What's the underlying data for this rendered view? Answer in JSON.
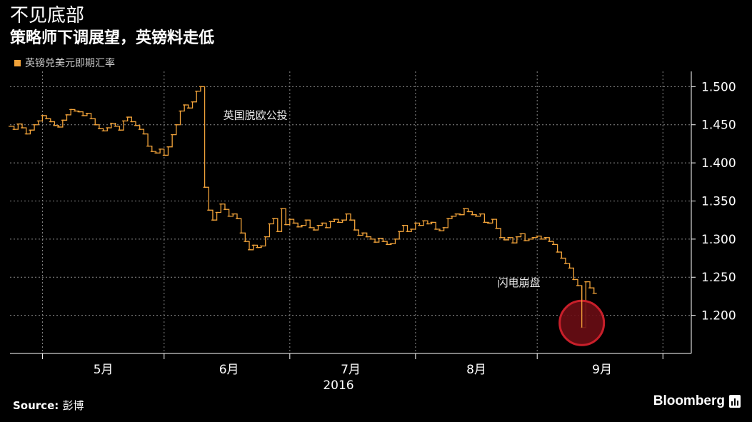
{
  "header": {
    "title": "不见底部",
    "subtitle": "策略师下调展望，英镑料走低",
    "legend": "英镑兑美元即期汇率"
  },
  "footer": {
    "source_label": "Source:",
    "source_value": "彭博",
    "brand": "Bloomberg"
  },
  "colors": {
    "line": "#f2a33a",
    "grid": "#8a8a8a",
    "axis": "#ffffff",
    "highlight": "#c81f2a",
    "highlight_fill": "#6a0d14"
  },
  "chart_data": {
    "type": "line",
    "title": "",
    "ylim": [
      1.15,
      1.52
    ],
    "yticks": [
      1.2,
      1.25,
      1.3,
      1.35,
      1.4,
      1.45,
      1.5
    ],
    "ytick_labels": [
      "1.200",
      "1.250",
      "1.300",
      "1.350",
      "1.400",
      "1.450",
      "1.500"
    ],
    "x_year_label": "2016",
    "x_range_days": [
      0,
      168
    ],
    "month_labels": [
      {
        "label": "5月",
        "day": 23
      },
      {
        "label": "6月",
        "day": 54
      },
      {
        "label": "7月",
        "day": 84
      },
      {
        "label": "8月",
        "day": 115
      },
      {
        "label": "9月",
        "day": 146
      }
    ],
    "grid": true,
    "series": [
      {
        "name": "英镑兑美元即期汇率",
        "points": [
          [
            0,
            1.448
          ],
          [
            1,
            1.444
          ],
          [
            2,
            1.451
          ],
          [
            3,
            1.446
          ],
          [
            4,
            1.438
          ],
          [
            5,
            1.443
          ],
          [
            6,
            1.45
          ],
          [
            7,
            1.455
          ],
          [
            8,
            1.462
          ],
          [
            9,
            1.458
          ],
          [
            10,
            1.454
          ],
          [
            11,
            1.449
          ],
          [
            12,
            1.447
          ],
          [
            13,
            1.456
          ],
          [
            14,
            1.463
          ],
          [
            15,
            1.47
          ],
          [
            16,
            1.468
          ],
          [
            17,
            1.467
          ],
          [
            18,
            1.462
          ],
          [
            19,
            1.465
          ],
          [
            20,
            1.458
          ],
          [
            21,
            1.45
          ],
          [
            22,
            1.445
          ],
          [
            23,
            1.442
          ],
          [
            24,
            1.446
          ],
          [
            25,
            1.452
          ],
          [
            26,
            1.448
          ],
          [
            27,
            1.443
          ],
          [
            28,
            1.455
          ],
          [
            29,
            1.46
          ],
          [
            30,
            1.454
          ],
          [
            31,
            1.449
          ],
          [
            32,
            1.444
          ],
          [
            33,
            1.438
          ],
          [
            34,
            1.422
          ],
          [
            35,
            1.415
          ],
          [
            36,
            1.413
          ],
          [
            37,
            1.418
          ],
          [
            38,
            1.41
          ],
          [
            39,
            1.421
          ],
          [
            40,
            1.437
          ],
          [
            41,
            1.45
          ],
          [
            42,
            1.468
          ],
          [
            43,
            1.476
          ],
          [
            44,
            1.472
          ],
          [
            45,
            1.48
          ],
          [
            46,
            1.494
          ],
          [
            47,
            1.5
          ],
          [
            48,
            1.368
          ],
          [
            49,
            1.338
          ],
          [
            50,
            1.325
          ],
          [
            51,
            1.335
          ],
          [
            52,
            1.346
          ],
          [
            53,
            1.339
          ],
          [
            54,
            1.33
          ],
          [
            55,
            1.333
          ],
          [
            56,
            1.327
          ],
          [
            57,
            1.308
          ],
          [
            58,
            1.297
          ],
          [
            59,
            1.286
          ],
          [
            60,
            1.292
          ],
          [
            61,
            1.289
          ],
          [
            62,
            1.291
          ],
          [
            63,
            1.303
          ],
          [
            64,
            1.32
          ],
          [
            65,
            1.327
          ],
          [
            66,
            1.31
          ],
          [
            67,
            1.34
          ],
          [
            68,
            1.319
          ],
          [
            69,
            1.326
          ],
          [
            70,
            1.321
          ],
          [
            71,
            1.316
          ],
          [
            72,
            1.318
          ],
          [
            73,
            1.325
          ],
          [
            74,
            1.315
          ],
          [
            75,
            1.312
          ],
          [
            76,
            1.318
          ],
          [
            77,
            1.321
          ],
          [
            78,
            1.315
          ],
          [
            79,
            1.323
          ],
          [
            80,
            1.326
          ],
          [
            81,
            1.322
          ],
          [
            82,
            1.325
          ],
          [
            83,
            1.333
          ],
          [
            84,
            1.325
          ],
          [
            85,
            1.312
          ],
          [
            86,
            1.305
          ],
          [
            87,
            1.308
          ],
          [
            88,
            1.303
          ],
          [
            89,
            1.3
          ],
          [
            90,
            1.296
          ],
          [
            91,
            1.301
          ],
          [
            92,
            1.297
          ],
          [
            93,
            1.293
          ],
          [
            94,
            1.294
          ],
          [
            95,
            1.3
          ],
          [
            96,
            1.31
          ],
          [
            97,
            1.318
          ],
          [
            98,
            1.31
          ],
          [
            99,
            1.313
          ],
          [
            100,
            1.321
          ],
          [
            101,
            1.318
          ],
          [
            102,
            1.324
          ],
          [
            103,
            1.32
          ],
          [
            104,
            1.322
          ],
          [
            105,
            1.313
          ],
          [
            106,
            1.311
          ],
          [
            107,
            1.315
          ],
          [
            108,
            1.327
          ],
          [
            109,
            1.33
          ],
          [
            110,
            1.333
          ],
          [
            111,
            1.332
          ],
          [
            112,
            1.34
          ],
          [
            113,
            1.336
          ],
          [
            114,
            1.332
          ],
          [
            115,
            1.33
          ],
          [
            116,
            1.333
          ],
          [
            117,
            1.322
          ],
          [
            118,
            1.321
          ],
          [
            119,
            1.326
          ],
          [
            120,
            1.314
          ],
          [
            121,
            1.302
          ],
          [
            122,
            1.299
          ],
          [
            123,
            1.302
          ],
          [
            124,
            1.295
          ],
          [
            125,
            1.303
          ],
          [
            126,
            1.307
          ],
          [
            127,
            1.298
          ],
          [
            128,
            1.3
          ],
          [
            129,
            1.302
          ],
          [
            130,
            1.304
          ],
          [
            131,
            1.3
          ],
          [
            132,
            1.302
          ],
          [
            133,
            1.297
          ],
          [
            134,
            1.293
          ],
          [
            135,
            1.283
          ],
          [
            136,
            1.275
          ],
          [
            137,
            1.268
          ],
          [
            138,
            1.262
          ],
          [
            139,
            1.247
          ],
          [
            140,
            1.239
          ],
          [
            141,
            1.184
          ],
          [
            142,
            1.244
          ],
          [
            143,
            1.236
          ],
          [
            144,
            1.229
          ]
        ]
      }
    ],
    "annotations": [
      {
        "text": "英国脱欧公投",
        "day": 48,
        "value": 1.45
      },
      {
        "text": "闪电崩盘",
        "day": 141,
        "value": 1.184
      }
    ]
  }
}
